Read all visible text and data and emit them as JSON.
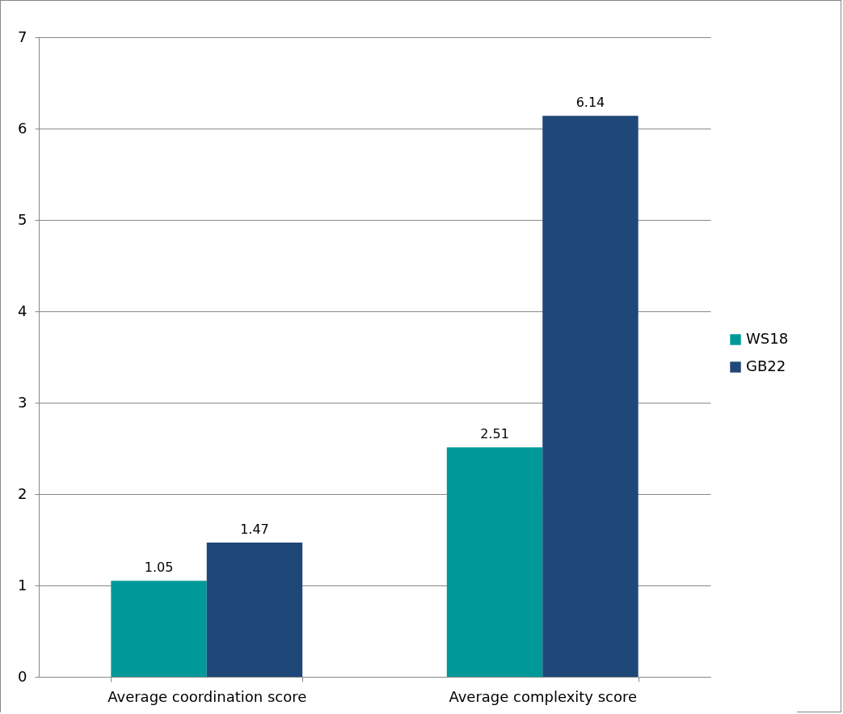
{
  "chart_data": {
    "type": "bar",
    "categories": [
      "Average coordination score",
      "Average complexity score"
    ],
    "series": [
      {
        "name": "WS18",
        "color": "#009999",
        "values": [
          1.05,
          2.51
        ]
      },
      {
        "name": "GB22",
        "color": "#1f4778",
        "values": [
          1.47,
          6.14
        ]
      }
    ],
    "ylim": [
      0,
      7
    ],
    "yticks": [
      0,
      1,
      2,
      3,
      4,
      5,
      6,
      7
    ],
    "grid": "y",
    "legend": "right",
    "data_labels": true
  }
}
